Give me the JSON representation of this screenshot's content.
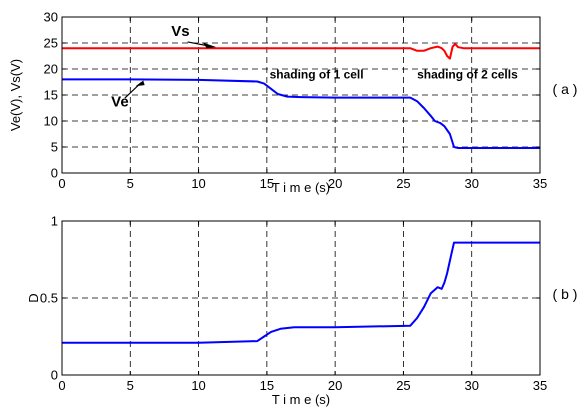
{
  "chart_data": [
    {
      "type": "line",
      "panel_label": "( a )",
      "xlabel": "T i m e  (s)",
      "ylabel": "Ve(V),    Vs(V)",
      "xlim": [
        0,
        35
      ],
      "ylim": [
        0,
        30
      ],
      "xticks": [
        0,
        5,
        10,
        15,
        20,
        25,
        30,
        35
      ],
      "yticks": [
        0,
        5,
        10,
        15,
        20,
        25,
        30
      ],
      "grid": true,
      "series": [
        {
          "name": "Vs",
          "color": "#ff0000",
          "x": [
            0,
            25.5,
            26,
            26.5,
            27.0,
            27.5,
            27.8,
            28.0,
            28.2,
            28.4,
            28.6,
            28.8,
            29.0,
            29.4,
            30,
            35
          ],
          "y": [
            24,
            24,
            23.5,
            23.5,
            24.0,
            24.3,
            24.0,
            23.5,
            22.5,
            22.0,
            24.3,
            24.8,
            24.2,
            24.0,
            24,
            24
          ]
        },
        {
          "name": "Ve",
          "color": "#0000ff",
          "x": [
            0,
            5,
            10,
            14.3,
            14.8,
            15.3,
            15.8,
            16.5,
            17.5,
            20,
            25.5,
            26,
            26.5,
            27.0,
            27.3,
            27.7,
            28.0,
            28.4,
            28.7,
            29,
            30,
            35
          ],
          "y": [
            18,
            18,
            17.9,
            17.6,
            17.2,
            16.2,
            15.2,
            14.7,
            14.6,
            14.5,
            14.5,
            13.8,
            12.5,
            11.0,
            10.0,
            9.6,
            9.0,
            7.5,
            5.0,
            4.8,
            4.8,
            4.8
          ]
        }
      ],
      "annotations": [
        {
          "text": "Vs",
          "x": 8.0,
          "y": 26.3
        },
        {
          "text": "Ve",
          "x": 3.6,
          "y": 12.8
        },
        {
          "text": "shading of 1 cell",
          "x": 15.2,
          "y": 18.2
        },
        {
          "text": "shading of 2 cells",
          "x": 26.0,
          "y": 18.2
        }
      ]
    },
    {
      "type": "line",
      "panel_label": "( b )",
      "xlabel": "T i m e  (s)",
      "ylabel": "D",
      "xlim": [
        0,
        35
      ],
      "ylim": [
        0,
        1
      ],
      "xticks": [
        0,
        5,
        10,
        15,
        20,
        25,
        30,
        35
      ],
      "yticks": [
        0,
        0.5,
        1
      ],
      "grid": true,
      "series": [
        {
          "color": "#0000ff",
          "x": [
            0,
            5,
            10,
            14.3,
            14.8,
            15.3,
            16,
            17,
            20,
            25.5,
            26,
            26.5,
            27.0,
            27.5,
            27.8,
            28.0,
            28.2,
            28.5,
            28.7,
            29,
            30,
            35
          ],
          "y": [
            0.21,
            0.21,
            0.21,
            0.22,
            0.25,
            0.28,
            0.3,
            0.31,
            0.31,
            0.32,
            0.37,
            0.44,
            0.53,
            0.57,
            0.56,
            0.6,
            0.66,
            0.78,
            0.86,
            0.86,
            0.86,
            0.86
          ]
        }
      ]
    }
  ]
}
